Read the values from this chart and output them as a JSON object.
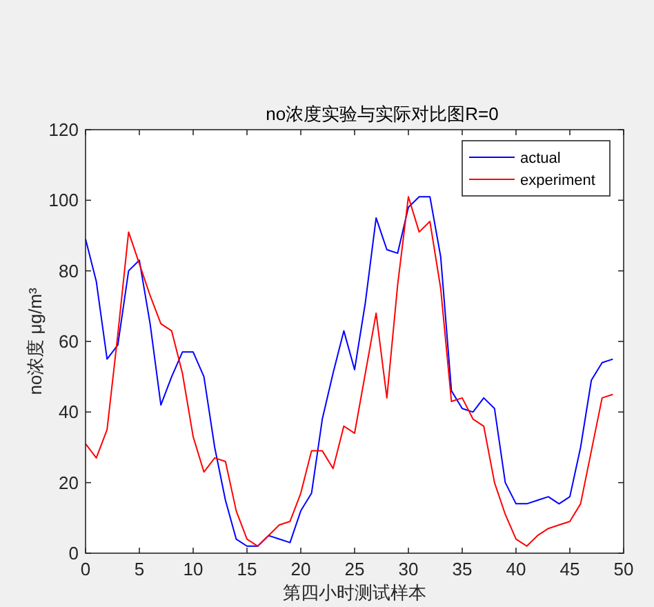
{
  "chart_data": {
    "type": "line",
    "title": "no浓度实验与实际对比图R=0",
    "xlabel": "第四小时测试样本",
    "ylabel": "no浓度 μg/m³",
    "x": [
      0,
      1,
      2,
      3,
      4,
      5,
      6,
      7,
      8,
      9,
      10,
      11,
      12,
      13,
      14,
      15,
      16,
      17,
      18,
      19,
      20,
      21,
      22,
      23,
      24,
      25,
      26,
      27,
      28,
      29,
      30,
      31,
      32,
      33,
      34,
      35,
      36,
      37,
      38,
      39,
      40,
      41,
      42,
      43,
      44,
      45,
      46,
      47,
      48,
      49
    ],
    "series": [
      {
        "name": "actual",
        "color": "#0000ff",
        "values": [
          89,
          77,
          55,
          59,
          80,
          83,
          65,
          42,
          50,
          57,
          57,
          50,
          30,
          15,
          4,
          2,
          2,
          5,
          4,
          3,
          12,
          17,
          38,
          51,
          63,
          52,
          71,
          95,
          86,
          85,
          98,
          101,
          101,
          84,
          46,
          41,
          40,
          44,
          41,
          20,
          14,
          14,
          15,
          16,
          14,
          16,
          30,
          49,
          54,
          55
        ]
      },
      {
        "name": "experiment",
        "color": "#ff0000",
        "values": [
          31,
          27,
          35,
          62,
          91,
          82,
          73,
          65,
          63,
          51,
          33,
          23,
          27,
          26,
          12,
          4,
          2,
          5,
          8,
          9,
          17,
          29,
          29,
          24,
          36,
          34,
          51,
          68,
          44,
          76,
          101,
          91,
          94,
          75,
          43,
          44,
          38,
          36,
          20,
          11,
          4,
          2,
          5,
          7,
          8,
          9,
          14,
          29,
          44,
          45
        ]
      }
    ],
    "xlim": [
      0,
      50
    ],
    "ylim": [
      0,
      120
    ],
    "xticks": [
      0,
      5,
      10,
      15,
      20,
      25,
      30,
      35,
      40,
      45,
      50
    ],
    "yticks": [
      0,
      20,
      40,
      60,
      80,
      100,
      120
    ],
    "legend": "top right"
  }
}
